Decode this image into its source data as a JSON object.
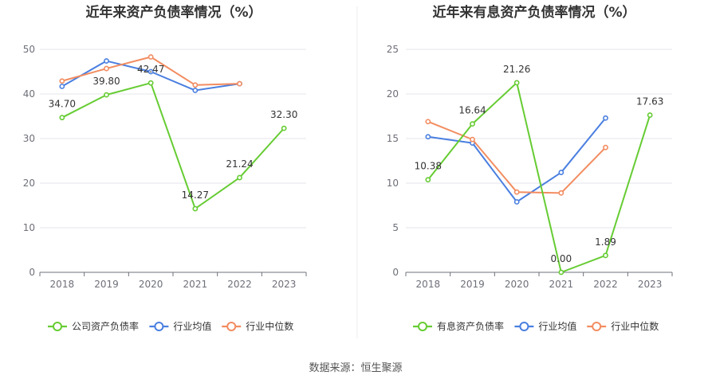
{
  "source_text": "数据来源：恒生聚源",
  "chart_data": [
    {
      "type": "line",
      "title": "近年来资产负债率情况（%）",
      "categories": [
        "2018",
        "2019",
        "2020",
        "2021",
        "2022",
        "2023"
      ],
      "ylim": [
        0,
        50
      ],
      "yticks": [
        0,
        10,
        20,
        30,
        40,
        50
      ],
      "series": [
        {
          "name": "公司资产负债率",
          "color": "#66cc33",
          "values": [
            34.7,
            39.8,
            42.47,
            14.27,
            21.24,
            32.3
          ],
          "labels": [
            "34.70",
            "39.80",
            "42.47",
            "14.27",
            "21.24",
            "32.30"
          ]
        },
        {
          "name": "行业均值",
          "color": "#4a7fe0",
          "values": [
            41.7,
            47.4,
            45.0,
            40.8,
            42.3,
            null
          ]
        },
        {
          "name": "行业中位数",
          "color": "#f28c60",
          "values": [
            42.9,
            45.7,
            48.3,
            42.0,
            42.3,
            null
          ]
        }
      ]
    },
    {
      "type": "line",
      "title": "近年来有息资产负债率情况（%）",
      "categories": [
        "2018",
        "2019",
        "2020",
        "2021",
        "2022",
        "2023"
      ],
      "ylim": [
        0,
        25
      ],
      "yticks": [
        0,
        5,
        10,
        15,
        20,
        25
      ],
      "series": [
        {
          "name": "有息资产负债率",
          "color": "#66cc33",
          "values": [
            10.38,
            16.64,
            21.26,
            0.0,
            1.89,
            17.63
          ],
          "labels": [
            "10.38",
            "16.64",
            "21.26",
            "0.00",
            "1.89",
            "17.63"
          ]
        },
        {
          "name": "行业均值",
          "color": "#4a7fe0",
          "values": [
            15.2,
            14.5,
            7.9,
            11.2,
            17.3,
            null
          ]
        },
        {
          "name": "行业中位数",
          "color": "#f28c60",
          "values": [
            16.9,
            14.9,
            9.0,
            8.9,
            14.0,
            null
          ]
        }
      ]
    }
  ]
}
